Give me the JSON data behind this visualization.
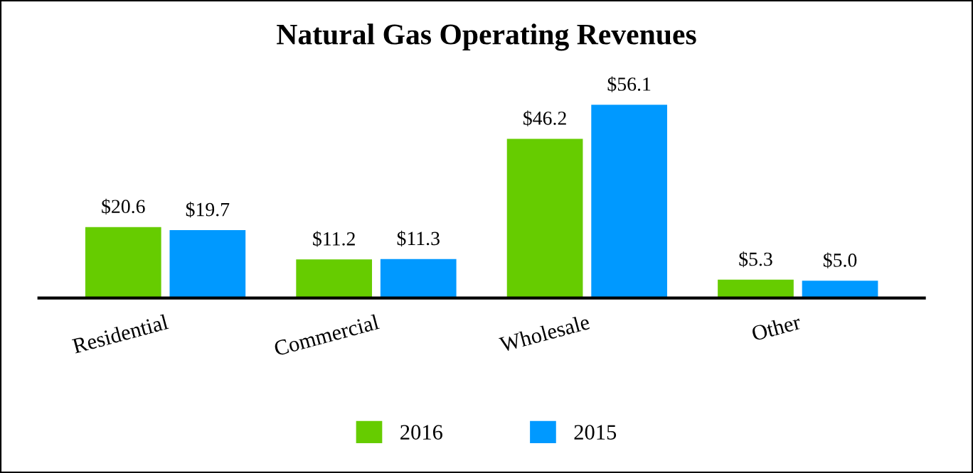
{
  "chart_data": {
    "type": "bar",
    "title": "Natural Gas Operating Revenues",
    "categories": [
      "Residential",
      "Commercial",
      "Wholesale",
      "Other"
    ],
    "series": [
      {
        "name": "2016",
        "color": "#66cc00",
        "values": [
          20.6,
          11.2,
          46.2,
          5.3
        ],
        "value_labels": [
          "$20.6",
          "$11.2",
          "$46.2",
          "$5.3"
        ]
      },
      {
        "name": "2015",
        "color": "#0099ff",
        "values": [
          19.7,
          11.3,
          56.1,
          5.0
        ],
        "value_labels": [
          "$19.7",
          "$11.3",
          "$56.1",
          "$5.0"
        ]
      }
    ],
    "legend": "bottom",
    "grid": false,
    "tick_labels": "x"
  }
}
